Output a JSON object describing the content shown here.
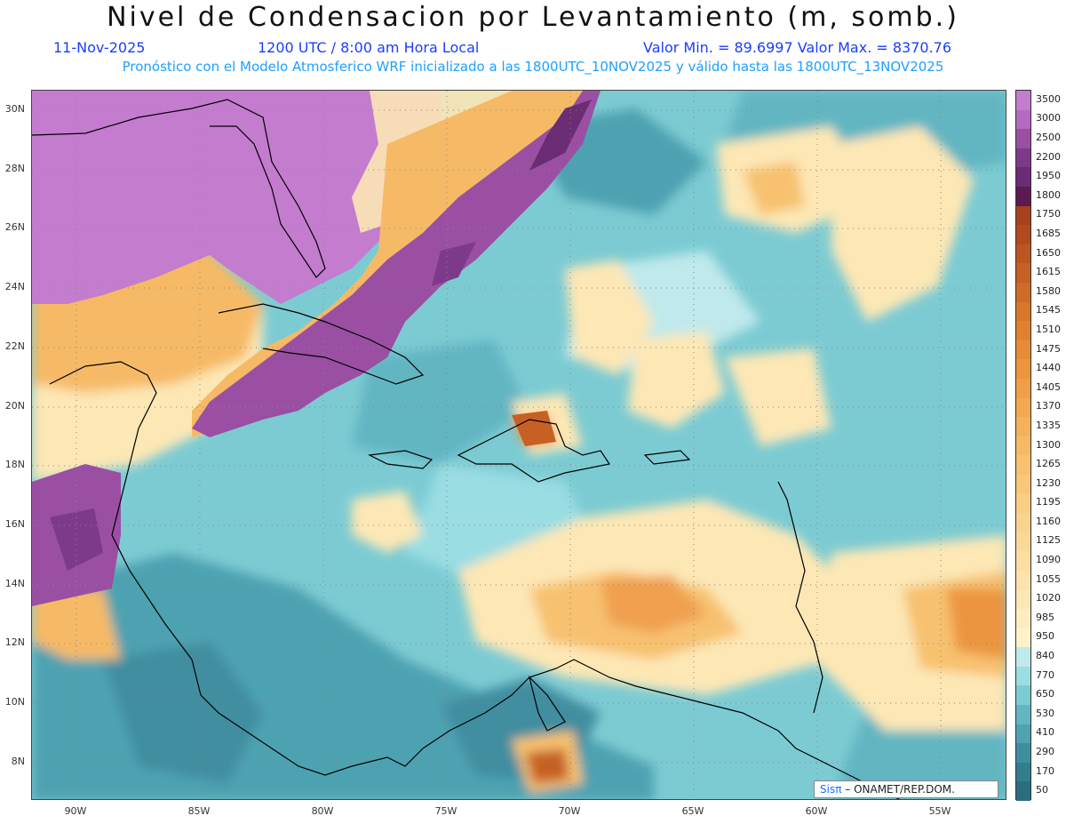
{
  "header": {
    "title": "Nivel de Condensacion por Levantamiento (m, somb.)",
    "date": "11-Nov-2025",
    "time": "1200 UTC / 8:00 am Hora Local",
    "minmax": "Valor Min. = 89.6997   Valor Max. = 8370.76",
    "subtitle": "Pronóstico con el Modelo Atmosferico WRF inicializado a las 1800UTC_10NOV2025 y válido hasta las  1800UTC_13NOV2025"
  },
  "map": {
    "lat_labels": [
      "30N",
      "28N",
      "26N",
      "24N",
      "22N",
      "20N",
      "18N",
      "16N",
      "14N",
      "12N",
      "10N",
      "8N"
    ],
    "lon_labels": [
      "90W",
      "85W",
      "80W",
      "75W",
      "70W",
      "65W",
      "60W",
      "55W"
    ]
  },
  "colorbar": {
    "labels": [
      "3500",
      "3000",
      "2500",
      "2200",
      "1950",
      "1800",
      "1750",
      "1685",
      "1650",
      "1615",
      "1580",
      "1545",
      "1510",
      "1475",
      "1440",
      "1405",
      "1370",
      "1335",
      "1300",
      "1265",
      "1230",
      "1195",
      "1160",
      "1125",
      "1090",
      "1055",
      "1020",
      "985",
      "950",
      "840",
      "770",
      "650",
      "530",
      "410",
      "290",
      "170",
      "50"
    ],
    "colors": [
      "#c47ccf",
      "#b36ac0",
      "#9a4fa3",
      "#7e3a8a",
      "#6a2c72",
      "#5b1b52",
      "#a8401c",
      "#b34a1e",
      "#bd5520",
      "#c66024",
      "#cf6b28",
      "#d8762c",
      "#e08132",
      "#e78b38",
      "#ec953f",
      "#f09f48",
      "#f3a952",
      "#f5b25c",
      "#f6ba66",
      "#f7c170",
      "#f8c77a",
      "#f9cd84",
      "#fad38e",
      "#fbd898",
      "#fcdda2",
      "#fde2ab",
      "#fde7b5",
      "#feedc0",
      "#fff2cb",
      "#bfe9ec",
      "#9adde3",
      "#7ccbd3",
      "#62b6c2",
      "#4ea2b1",
      "#3f8ea0",
      "#347c8f",
      "#2b6c80"
    ]
  },
  "credit": {
    "sis": "Sisπ",
    "rest": " – ONAMET/REP.DOM."
  }
}
